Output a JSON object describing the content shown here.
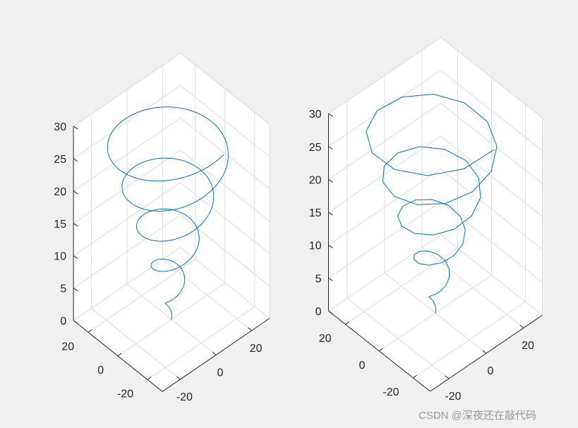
{
  "figure": {
    "background": "#f0f0f0",
    "watermark": "CSDN @深夜还在敲代码"
  },
  "colors": {
    "line": "#0072bd",
    "axes_face": "#ffffff",
    "grid": "#dcdcdc",
    "axis_line": "#262626"
  },
  "chart_data": [
    {
      "type": "line",
      "subtype": "3d-helix",
      "parametric": {
        "x": "r * cos(t)",
        "y": "r * sin(t)",
        "z": "t",
        "r": "t",
        "t_range": [
          0,
          30
        ],
        "samples": 2000
      },
      "xlim": [
        -30,
        30
      ],
      "ylim": [
        -30,
        30
      ],
      "zlim": [
        0,
        30
      ],
      "x_ticks": [
        "-20",
        "0",
        "20"
      ],
      "y_ticks": [
        "-20",
        "0",
        "20"
      ],
      "z_ticks": [
        "0",
        "5",
        "10",
        "15",
        "20",
        "25",
        "30"
      ],
      "grid": true,
      "line_color": "#0072bd"
    },
    {
      "type": "line",
      "subtype": "3d-helix",
      "parametric": {
        "x": "r * cos(t)",
        "y": "r * sin(t)",
        "z": "t",
        "r": "t",
        "t_range": [
          0,
          30
        ],
        "samples": 60
      },
      "xlim": [
        -30,
        30
      ],
      "ylim": [
        -30,
        30
      ],
      "zlim": [
        0,
        30
      ],
      "x_ticks": [
        "-20",
        "0",
        "20"
      ],
      "y_ticks": [
        "-20",
        "0",
        "20"
      ],
      "z_ticks": [
        "0",
        "5",
        "10",
        "15",
        "20",
        "25",
        "30"
      ],
      "grid": true,
      "line_color": "#0072bd"
    }
  ]
}
